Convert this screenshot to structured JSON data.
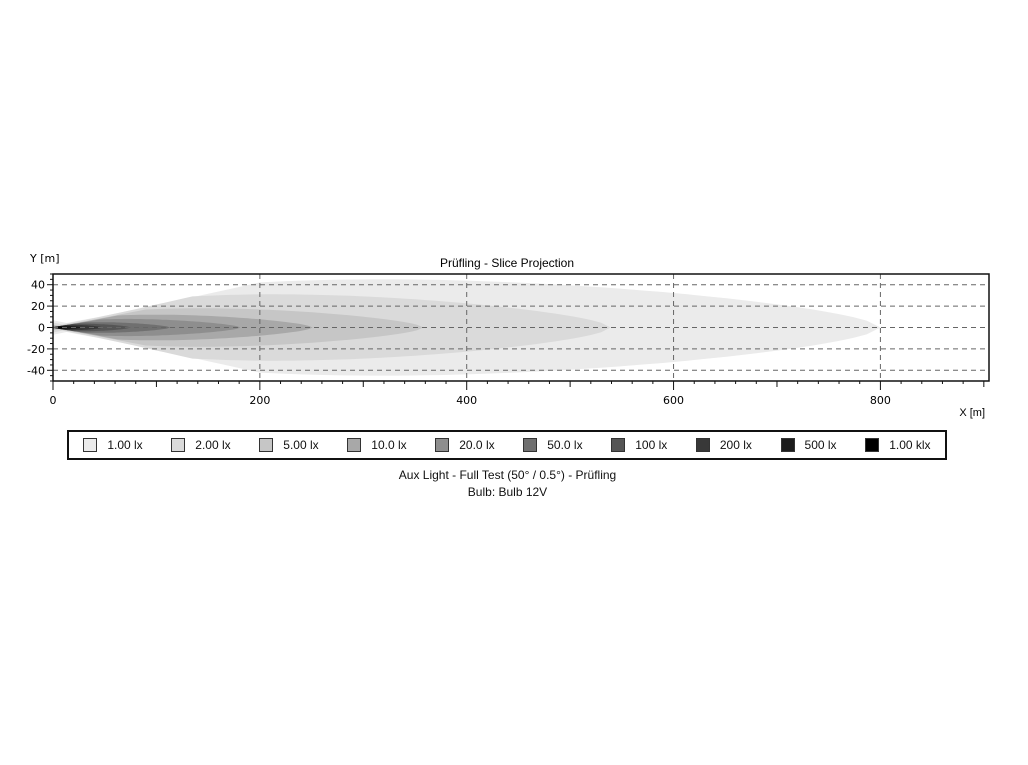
{
  "chart_data": {
    "type": "heatmap",
    "title": "Prüfling - Slice Projection",
    "xlabel": "X [m]",
    "ylabel": "Y [m]",
    "xlim": [
      0,
      905
    ],
    "ylim": [
      -50,
      50
    ],
    "xticks": [
      0,
      200,
      400,
      600,
      800
    ],
    "yticks": [
      40,
      20,
      0,
      -20,
      -40
    ],
    "grid": true,
    "legend_position": "bottom",
    "levels": [
      {
        "label": "1.00 lx",
        "color": "#ebebeb",
        "reach_m": 800,
        "half_width_m": 45
      },
      {
        "label": "2.00 lx",
        "color": "#dadada",
        "reach_m": 539,
        "half_width_m": 31
      },
      {
        "label": "5.00 lx",
        "color": "#c6c6c6",
        "reach_m": 358,
        "half_width_m": 18
      },
      {
        "label": "10.0 lx",
        "color": "#a8a8a8",
        "reach_m": 251,
        "half_width_m": 12
      },
      {
        "label": "20.0 lx",
        "color": "#8e8e8e",
        "reach_m": 181,
        "half_width_m": 8
      },
      {
        "label": "50.0 lx",
        "color": "#707070",
        "reach_m": 113,
        "half_width_m": 5
      },
      {
        "label": "100 lx",
        "color": "#555555",
        "reach_m": 75,
        "half_width_m": 3.5
      },
      {
        "label": "200 lx",
        "color": "#383838",
        "reach_m": 48,
        "half_width_m": 2.5
      },
      {
        "label": "500 lx",
        "color": "#1c1c1c",
        "reach_m": 28,
        "half_width_m": 1.6
      },
      {
        "label": "1.00 klx",
        "color": "#000000",
        "reach_m": 14,
        "half_width_m": 1
      }
    ]
  },
  "caption": {
    "line1": "Aux Light - Full Test (50° / 0.5°) - Prüfling",
    "line2": "Bulb: Bulb 12V"
  }
}
